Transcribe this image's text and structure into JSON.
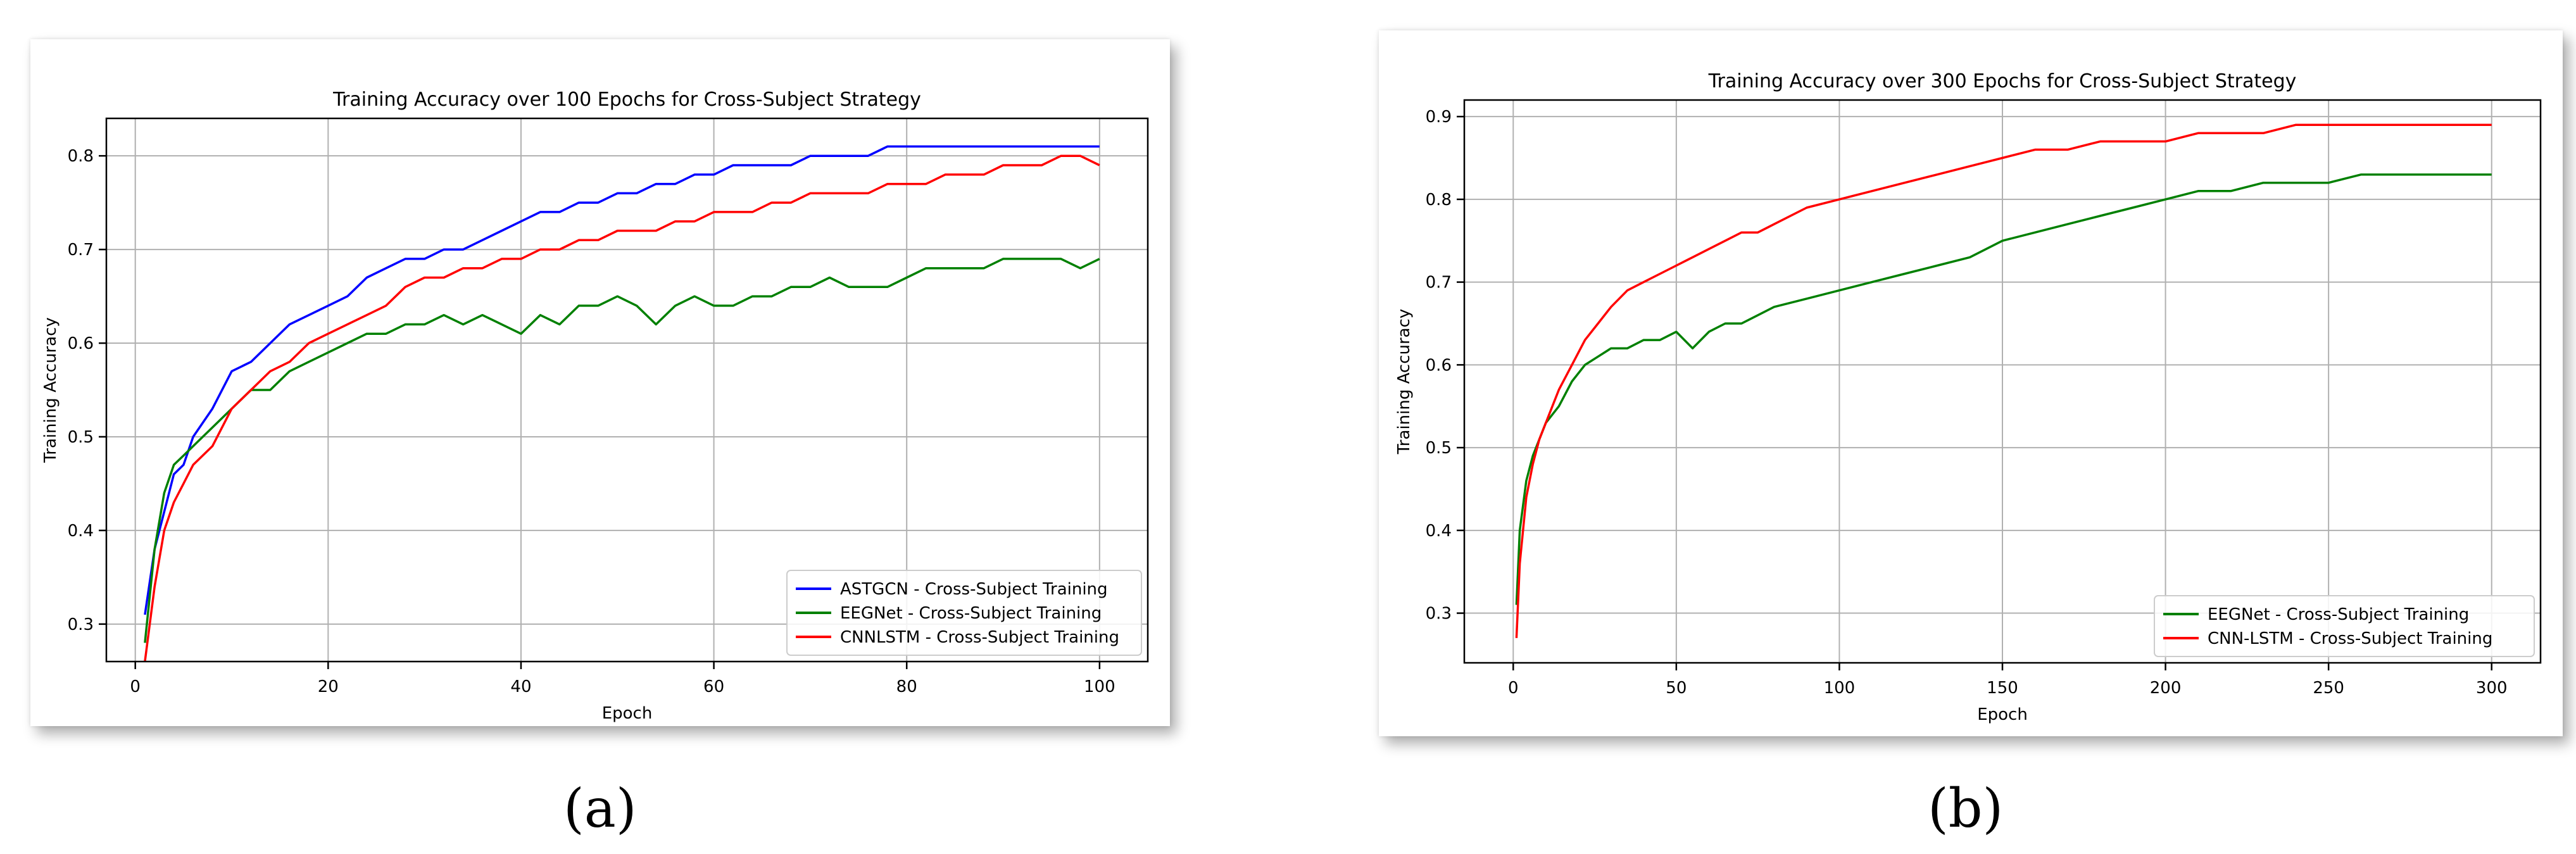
{
  "chart_data": [
    {
      "type": "line",
      "title": "Training Accuracy over 100 Epochs for Cross-Subject Strategy",
      "xlabel": "Epoch",
      "ylabel": "Training Accuracy",
      "xlim": [
        -3,
        105
      ],
      "ylim": [
        0.26,
        0.84
      ],
      "xticks": [
        0,
        20,
        40,
        60,
        80,
        100
      ],
      "yticks": [
        0.3,
        0.4,
        0.5,
        0.6,
        0.7,
        0.8
      ],
      "grid": true,
      "legend_position": "bottom-right",
      "series": [
        {
          "name": "ASTGCN - Cross-Subject Training",
          "color": "#0000ff",
          "x": [
            1,
            2,
            3,
            4,
            5,
            6,
            8,
            10,
            12,
            14,
            16,
            18,
            20,
            22,
            24,
            26,
            28,
            30,
            32,
            34,
            36,
            38,
            40,
            42,
            44,
            46,
            48,
            50,
            52,
            54,
            56,
            58,
            60,
            62,
            64,
            66,
            68,
            70,
            72,
            74,
            76,
            78,
            80,
            82,
            84,
            86,
            88,
            90,
            92,
            94,
            96,
            98,
            100
          ],
          "y": [
            0.31,
            0.38,
            0.42,
            0.46,
            0.47,
            0.5,
            0.53,
            0.57,
            0.58,
            0.6,
            0.62,
            0.63,
            0.64,
            0.65,
            0.67,
            0.68,
            0.69,
            0.69,
            0.7,
            0.7,
            0.71,
            0.72,
            0.73,
            0.74,
            0.74,
            0.75,
            0.75,
            0.76,
            0.76,
            0.77,
            0.77,
            0.78,
            0.78,
            0.79,
            0.79,
            0.79,
            0.79,
            0.8,
            0.8,
            0.8,
            0.8,
            0.81,
            0.81,
            0.81,
            0.81,
            0.81,
            0.81,
            0.81,
            0.81,
            0.81,
            0.81,
            0.81,
            0.81
          ]
        },
        {
          "name": "EEGNet - Cross-Subject Training",
          "color": "#008000",
          "x": [
            1,
            2,
            3,
            4,
            5,
            6,
            8,
            10,
            12,
            14,
            16,
            18,
            20,
            22,
            24,
            26,
            28,
            30,
            32,
            34,
            36,
            38,
            40,
            42,
            44,
            46,
            48,
            50,
            52,
            54,
            56,
            58,
            60,
            62,
            64,
            66,
            68,
            70,
            72,
            74,
            76,
            78,
            80,
            82,
            84,
            86,
            88,
            90,
            92,
            94,
            96,
            98,
            100
          ],
          "y": [
            0.28,
            0.38,
            0.44,
            0.47,
            0.48,
            0.49,
            0.51,
            0.53,
            0.55,
            0.55,
            0.57,
            0.58,
            0.59,
            0.6,
            0.61,
            0.61,
            0.62,
            0.62,
            0.63,
            0.62,
            0.63,
            0.62,
            0.61,
            0.63,
            0.62,
            0.64,
            0.64,
            0.65,
            0.64,
            0.62,
            0.64,
            0.65,
            0.64,
            0.64,
            0.65,
            0.65,
            0.66,
            0.66,
            0.67,
            0.66,
            0.66,
            0.66,
            0.67,
            0.68,
            0.68,
            0.68,
            0.68,
            0.69,
            0.69,
            0.69,
            0.69,
            0.68,
            0.69
          ]
        },
        {
          "name": "CNNLSTM - Cross-Subject Training",
          "color": "#ff0000",
          "x": [
            1,
            2,
            3,
            4,
            5,
            6,
            8,
            10,
            12,
            14,
            16,
            18,
            20,
            22,
            24,
            26,
            28,
            30,
            32,
            34,
            36,
            38,
            40,
            42,
            44,
            46,
            48,
            50,
            52,
            54,
            56,
            58,
            60,
            62,
            64,
            66,
            68,
            70,
            72,
            74,
            76,
            78,
            80,
            82,
            84,
            86,
            88,
            90,
            92,
            94,
            96,
            98,
            100
          ],
          "y": [
            0.26,
            0.34,
            0.4,
            0.43,
            0.45,
            0.47,
            0.49,
            0.53,
            0.55,
            0.57,
            0.58,
            0.6,
            0.61,
            0.62,
            0.63,
            0.64,
            0.66,
            0.67,
            0.67,
            0.68,
            0.68,
            0.69,
            0.69,
            0.7,
            0.7,
            0.71,
            0.71,
            0.72,
            0.72,
            0.72,
            0.73,
            0.73,
            0.74,
            0.74,
            0.74,
            0.75,
            0.75,
            0.76,
            0.76,
            0.76,
            0.76,
            0.77,
            0.77,
            0.77,
            0.78,
            0.78,
            0.78,
            0.79,
            0.79,
            0.79,
            0.8,
            0.8,
            0.79
          ]
        }
      ]
    },
    {
      "type": "line",
      "title": "Training Accuracy over 300 Epochs for Cross-Subject Strategy",
      "xlabel": "Epoch",
      "ylabel": "Training Accuracy",
      "xlim": [
        -15,
        315
      ],
      "ylim": [
        0.24,
        0.92
      ],
      "xticks": [
        0,
        50,
        100,
        150,
        200,
        250,
        300
      ],
      "yticks": [
        0.3,
        0.4,
        0.5,
        0.6,
        0.7,
        0.8,
        0.9
      ],
      "grid": true,
      "legend_position": "bottom-right",
      "series": [
        {
          "name": "EEGNet - Cross-Subject Training",
          "color": "#008000",
          "x": [
            1,
            2,
            4,
            6,
            8,
            10,
            14,
            18,
            22,
            26,
            30,
            35,
            40,
            45,
            50,
            55,
            60,
            65,
            70,
            75,
            80,
            90,
            100,
            110,
            120,
            130,
            140,
            150,
            160,
            170,
            180,
            190,
            200,
            210,
            220,
            230,
            240,
            250,
            260,
            270,
            280,
            290,
            300
          ],
          "y": [
            0.31,
            0.4,
            0.46,
            0.49,
            0.51,
            0.53,
            0.55,
            0.58,
            0.6,
            0.61,
            0.62,
            0.62,
            0.63,
            0.63,
            0.64,
            0.62,
            0.64,
            0.65,
            0.65,
            0.66,
            0.67,
            0.68,
            0.69,
            0.7,
            0.71,
            0.72,
            0.73,
            0.75,
            0.76,
            0.77,
            0.78,
            0.79,
            0.8,
            0.81,
            0.81,
            0.82,
            0.82,
            0.82,
            0.83,
            0.83,
            0.83,
            0.83,
            0.83
          ]
        },
        {
          "name": "CNN-LSTM - Cross-Subject Training",
          "color": "#ff0000",
          "x": [
            1,
            2,
            4,
            6,
            8,
            10,
            14,
            18,
            22,
            26,
            30,
            35,
            40,
            45,
            50,
            55,
            60,
            65,
            70,
            75,
            80,
            90,
            100,
            110,
            120,
            130,
            140,
            150,
            160,
            170,
            180,
            190,
            200,
            210,
            220,
            230,
            240,
            250,
            260,
            270,
            280,
            290,
            300
          ],
          "y": [
            0.27,
            0.36,
            0.44,
            0.48,
            0.51,
            0.53,
            0.57,
            0.6,
            0.63,
            0.65,
            0.67,
            0.69,
            0.7,
            0.71,
            0.72,
            0.73,
            0.74,
            0.75,
            0.76,
            0.76,
            0.77,
            0.79,
            0.8,
            0.81,
            0.82,
            0.83,
            0.84,
            0.85,
            0.86,
            0.86,
            0.87,
            0.87,
            0.87,
            0.88,
            0.88,
            0.88,
            0.89,
            0.89,
            0.89,
            0.89,
            0.89,
            0.89,
            0.89
          ]
        }
      ]
    }
  ],
  "captions": [
    "(a)",
    "(b)"
  ]
}
